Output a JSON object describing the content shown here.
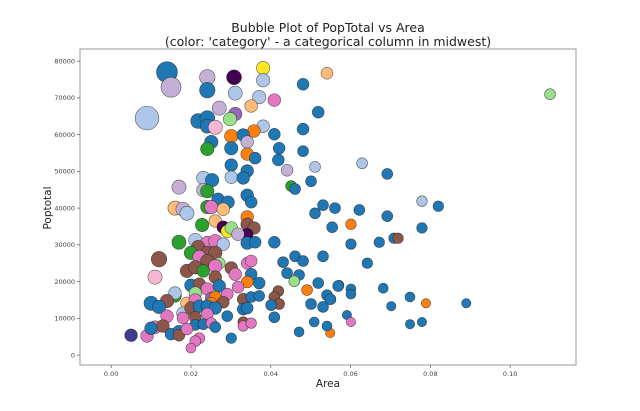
{
  "chart_data": {
    "type": "scatter",
    "variant": "bubble",
    "title": [
      "Bubble Plot of PopTotal vs Area",
      "(color: 'category' - a categorical column in midwest)"
    ],
    "xlabel": "Area",
    "ylabel": "Poptotal",
    "xlim": [
      -0.0078,
      0.1165
    ],
    "ylim": [
      -2700,
      83300
    ],
    "xticks": [
      0.0,
      0.02,
      0.04,
      0.06,
      0.08,
      0.1
    ],
    "xtick_labels": [
      "0.00",
      "0.02",
      "0.04",
      "0.06",
      "0.08",
      "0.10"
    ],
    "yticks": [
      0,
      10000,
      20000,
      30000,
      40000,
      50000,
      60000,
      70000,
      80000
    ],
    "ytick_labels": [
      "0",
      "10000",
      "20000",
      "30000",
      "40000",
      "50000",
      "60000",
      "70000",
      "80000"
    ],
    "grid": false,
    "legend": "none",
    "palette": [
      "#1f77b4",
      "#aec7e8",
      "#ff7f0e",
      "#ffbb78",
      "#2ca02c",
      "#98df8a",
      "#8c564b",
      "#e377c2",
      "#f7b6d2",
      "#c5b0d5",
      "#9467bd",
      "#440154",
      "#fde725",
      "#3b3b8f"
    ],
    "point_fields": [
      "area",
      "poptotal",
      "category_color_index",
      "bubble_size"
    ],
    "points": [
      [
        0.014,
        77000,
        0,
        110
      ],
      [
        0.015,
        72900,
        9,
        100
      ],
      [
        0.009,
        64500,
        1,
        140
      ],
      [
        0.0241,
        75600,
        9,
        60
      ],
      [
        0.0241,
        72100,
        0,
        60
      ],
      [
        0.0308,
        75600,
        11,
        55
      ],
      [
        0.0381,
        78100,
        12,
        45
      ],
      [
        0.0381,
        74800,
        1,
        45
      ],
      [
        0.0541,
        76700,
        3,
        35
      ],
      [
        0.0481,
        73700,
        0,
        35
      ],
      [
        0.0311,
        71300,
        1,
        50
      ],
      [
        0.0371,
        70200,
        1,
        45
      ],
      [
        0.0409,
        69400,
        7,
        40
      ],
      [
        0.0351,
        67800,
        3,
        40
      ],
      [
        0.0271,
        67200,
        9,
        50
      ],
      [
        0.0519,
        66100,
        0,
        35
      ],
      [
        0.0311,
        65600,
        10,
        45
      ],
      [
        0.0298,
        64200,
        5,
        45
      ],
      [
        0.0218,
        63700,
        0,
        55
      ],
      [
        0.0241,
        64500,
        0,
        55
      ],
      [
        0.0241,
        62300,
        0,
        50
      ],
      [
        0.0261,
        62000,
        8,
        50
      ],
      [
        0.0381,
        62300,
        1,
        40
      ],
      [
        0.0358,
        61000,
        2,
        40
      ],
      [
        0.0301,
        59600,
        2,
        45
      ],
      [
        0.0331,
        59900,
        0,
        40
      ],
      [
        0.0409,
        60100,
        0,
        35
      ],
      [
        0.0481,
        61500,
        0,
        35
      ],
      [
        0.0251,
        58000,
        0,
        45
      ],
      [
        0.0241,
        56100,
        4,
        45
      ],
      [
        0.0341,
        58000,
        9,
        40
      ],
      [
        0.0301,
        56300,
        0,
        45
      ],
      [
        0.0341,
        54700,
        2,
        40
      ],
      [
        0.0361,
        53600,
        0,
        35
      ],
      [
        0.0421,
        56300,
        0,
        35
      ],
      [
        0.0419,
        53100,
        0,
        35
      ],
      [
        0.0481,
        55500,
        0,
        30
      ],
      [
        0.0301,
        51700,
        0,
        40
      ],
      [
        0.0341,
        50100,
        0,
        40
      ],
      [
        0.0441,
        50300,
        9,
        35
      ],
      [
        0.0511,
        51200,
        1,
        30
      ],
      [
        0.0301,
        48400,
        1,
        40
      ],
      [
        0.0331,
        48200,
        0,
        40
      ],
      [
        0.0231,
        48200,
        1,
        45
      ],
      [
        0.0253,
        47600,
        0,
        45
      ],
      [
        0.017,
        45700,
        9,
        50
      ],
      [
        0.0231,
        44900,
        9,
        45
      ],
      [
        0.0241,
        44600,
        4,
        45
      ],
      [
        0.0451,
        46000,
        4,
        30
      ],
      [
        0.0461,
        45200,
        0,
        30
      ],
      [
        0.0501,
        47300,
        0,
        30
      ],
      [
        0.0341,
        43500,
        0,
        40
      ],
      [
        0.0351,
        41600,
        0,
        35
      ],
      [
        0.0268,
        42400,
        0,
        40
      ],
      [
        0.0293,
        41600,
        0,
        40
      ],
      [
        0.016,
        40000,
        3,
        50
      ],
      [
        0.018,
        39700,
        9,
        50
      ],
      [
        0.019,
        38600,
        1,
        50
      ],
      [
        0.0241,
        40300,
        4,
        45
      ],
      [
        0.0251,
        40300,
        7,
        45
      ],
      [
        0.0281,
        39700,
        3,
        40
      ],
      [
        0.0531,
        40800,
        0,
        30
      ],
      [
        0.0561,
        40000,
        0,
        30
      ],
      [
        0.0511,
        38600,
        0,
        30
      ],
      [
        0.0622,
        39500,
        0,
        30
      ],
      [
        0.0692,
        37800,
        0,
        30
      ],
      [
        0.0629,
        52200,
        1,
        30
      ],
      [
        0.0692,
        49300,
        0,
        30
      ],
      [
        0.0779,
        41900,
        1,
        28
      ],
      [
        0.082,
        40500,
        0,
        28
      ],
      [
        0.0601,
        35600,
        2,
        28
      ],
      [
        0.0554,
        34800,
        0,
        30
      ],
      [
        0.0779,
        34600,
        0,
        28
      ],
      [
        0.0601,
        30200,
        0,
        28
      ],
      [
        0.0672,
        30700,
        0,
        28
      ],
      [
        0.0709,
        31800,
        0,
        28
      ],
      [
        0.0719,
        31800,
        6,
        28
      ],
      [
        0.0642,
        25000,
        0,
        28
      ],
      [
        0.0571,
        19000,
        0,
        25
      ],
      [
        0.0601,
        18000,
        0,
        25
      ],
      [
        0.0601,
        16600,
        0,
        25
      ],
      [
        0.0682,
        18200,
        0,
        25
      ],
      [
        0.0551,
        15200,
        0,
        25
      ],
      [
        0.0749,
        15800,
        0,
        25
      ],
      [
        0.0789,
        14100,
        2,
        22
      ],
      [
        0.089,
        14100,
        0,
        22
      ],
      [
        0.0702,
        13300,
        0,
        22
      ],
      [
        0.0591,
        10900,
        0,
        22
      ],
      [
        0.0601,
        9000,
        7,
        22
      ],
      [
        0.0749,
        8400,
        0,
        22
      ],
      [
        0.0779,
        9000,
        0,
        22
      ],
      [
        0.0549,
        6000,
        2,
        22
      ],
      [
        0.11,
        71000,
        5,
        30
      ],
      [
        0.0228,
        35400,
        4,
        45
      ],
      [
        0.0261,
        36500,
        3,
        40
      ],
      [
        0.0341,
        37600,
        2,
        40
      ],
      [
        0.0281,
        34800,
        11,
        40
      ],
      [
        0.0291,
        33700,
        12,
        40
      ],
      [
        0.0301,
        34600,
        5,
        40
      ],
      [
        0.0341,
        35600,
        6,
        40
      ],
      [
        0.0358,
        34600,
        6,
        40
      ],
      [
        0.0341,
        32900,
        11,
        35
      ],
      [
        0.0318,
        32900,
        9,
        40
      ],
      [
        0.017,
        30700,
        4,
        50
      ],
      [
        0.0211,
        31300,
        1,
        45
      ],
      [
        0.0241,
        30500,
        7,
        45
      ],
      [
        0.0261,
        31000,
        7,
        45
      ],
      [
        0.0281,
        30200,
        1,
        40
      ],
      [
        0.0341,
        30500,
        0,
        40
      ],
      [
        0.0361,
        30700,
        0,
        35
      ],
      [
        0.0409,
        30700,
        0,
        35
      ],
      [
        0.0218,
        29400,
        6,
        45
      ],
      [
        0.02,
        27800,
        4,
        45
      ],
      [
        0.0241,
        27800,
        6,
        45
      ],
      [
        0.0261,
        27800,
        6,
        45
      ],
      [
        0.0221,
        26700,
        7,
        45
      ],
      [
        0.0241,
        25600,
        6,
        45
      ],
      [
        0.0271,
        25000,
        5,
        35
      ],
      [
        0.012,
        26100,
        6,
        60
      ],
      [
        0.0341,
        25000,
        7,
        35
      ],
      [
        0.0351,
        25600,
        7,
        35
      ],
      [
        0.0431,
        25300,
        0,
        30
      ],
      [
        0.0461,
        26900,
        0,
        30
      ],
      [
        0.0481,
        25600,
        0,
        30
      ],
      [
        0.0531,
        26900,
        0,
        30
      ],
      [
        0.019,
        22900,
        6,
        45
      ],
      [
        0.0211,
        23900,
        6,
        45
      ],
      [
        0.0231,
        22900,
        4,
        40
      ],
      [
        0.0261,
        24200,
        7,
        45
      ],
      [
        0.0301,
        23700,
        6,
        40
      ],
      [
        0.0311,
        22000,
        7,
        40
      ],
      [
        0.0261,
        21200,
        6,
        40
      ],
      [
        0.0351,
        22000,
        0,
        35
      ],
      [
        0.011,
        21200,
        8,
        50
      ],
      [
        0.0441,
        22300,
        0,
        30
      ],
      [
        0.0471,
        21800,
        0,
        30
      ],
      [
        0.0459,
        20100,
        5,
        30
      ],
      [
        0.0491,
        17700,
        2,
        30
      ],
      [
        0.0519,
        19600,
        0,
        30
      ],
      [
        0.0569,
        18800,
        0,
        30
      ],
      [
        0.0341,
        19900,
        2,
        35
      ],
      [
        0.0371,
        19600,
        0,
        35
      ],
      [
        0.02,
        19000,
        0,
        40
      ],
      [
        0.0221,
        19300,
        6,
        40
      ],
      [
        0.0241,
        18000,
        7,
        40
      ],
      [
        0.0271,
        18800,
        0,
        40
      ],
      [
        0.0318,
        18500,
        7,
        35
      ],
      [
        0.0291,
        16600,
        7,
        35
      ],
      [
        0.0331,
        15200,
        6,
        35
      ],
      [
        0.0351,
        15800,
        0,
        30
      ],
      [
        0.0371,
        16100,
        0,
        30
      ],
      [
        0.0419,
        17400,
        6,
        30
      ],
      [
        0.0409,
        15800,
        6,
        30
      ],
      [
        0.0211,
        16900,
        5,
        40
      ],
      [
        0.016,
        16100,
        4,
        40
      ],
      [
        0.016,
        16900,
        1,
        40
      ],
      [
        0.014,
        14700,
        6,
        45
      ],
      [
        0.019,
        14100,
        3,
        40
      ],
      [
        0.0211,
        15000,
        7,
        40
      ],
      [
        0.0251,
        15500,
        10,
        35
      ],
      [
        0.0261,
        15800,
        2,
        35
      ],
      [
        0.0251,
        14100,
        2,
        35
      ],
      [
        0.0281,
        14400,
        6,
        35
      ],
      [
        0.01,
        14100,
        0,
        50
      ],
      [
        0.012,
        13100,
        0,
        45
      ],
      [
        0.0541,
        16300,
        0,
        30
      ],
      [
        0.0549,
        15200,
        0,
        30
      ],
      [
        0.0501,
        13900,
        0,
        30
      ],
      [
        0.0531,
        13100,
        0,
        30
      ],
      [
        0.0421,
        13900,
        6,
        30
      ],
      [
        0.0401,
        13600,
        0,
        30
      ],
      [
        0.018,
        11400,
        1,
        40
      ],
      [
        0.02,
        12800,
        6,
        40
      ],
      [
        0.0221,
        13300,
        0,
        40
      ],
      [
        0.0241,
        13300,
        0,
        40
      ],
      [
        0.0261,
        12800,
        0,
        40
      ],
      [
        0.0331,
        12500,
        0,
        35
      ],
      [
        0.0341,
        12800,
        0,
        35
      ],
      [
        0.014,
        10600,
        7,
        40
      ],
      [
        0.018,
        10100,
        7,
        35
      ],
      [
        0.0211,
        10300,
        6,
        35
      ],
      [
        0.0241,
        11200,
        7,
        35
      ],
      [
        0.0291,
        10600,
        0,
        30
      ],
      [
        0.0409,
        10300,
        0,
        30
      ],
      [
        0.0211,
        8200,
        0,
        30
      ],
      [
        0.0231,
        8400,
        0,
        30
      ],
      [
        0.0251,
        8700,
        7,
        30
      ],
      [
        0.0261,
        7600,
        0,
        30
      ],
      [
        0.0331,
        9000,
        6,
        28
      ],
      [
        0.0331,
        7900,
        7,
        28
      ],
      [
        0.0351,
        8700,
        7,
        28
      ],
      [
        0.0509,
        9000,
        0,
        25
      ],
      [
        0.0541,
        7900,
        0,
        25
      ],
      [
        0.005,
        5400,
        13,
        40
      ],
      [
        0.009,
        5200,
        7,
        40
      ],
      [
        0.011,
        7600,
        7,
        40
      ],
      [
        0.013,
        7900,
        6,
        40
      ],
      [
        0.01,
        7300,
        0,
        40
      ],
      [
        0.015,
        5700,
        0,
        35
      ],
      [
        0.017,
        6500,
        0,
        35
      ],
      [
        0.017,
        5400,
        6,
        35
      ],
      [
        0.019,
        7100,
        7,
        35
      ],
      [
        0.0221,
        4600,
        7,
        30
      ],
      [
        0.0211,
        3800,
        7,
        30
      ],
      [
        0.02,
        1900,
        7,
        25
      ],
      [
        0.0301,
        4600,
        0,
        28
      ],
      [
        0.0471,
        6300,
        0,
        25
      ]
    ]
  }
}
